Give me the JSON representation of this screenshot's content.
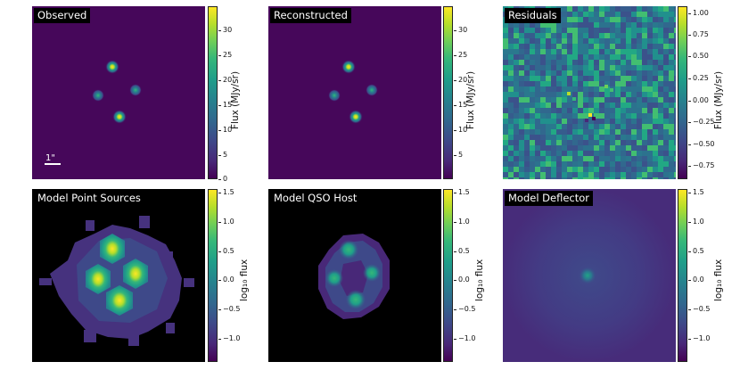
{
  "figure": {
    "panels": [
      {
        "title": "Observed",
        "colorbar": {
          "label": "Flux (MJy/sr)",
          "ticks": [
            "30",
            "25",
            "20",
            "15",
            "10",
            "5",
            "0"
          ]
        },
        "scale_bar": "1\""
      },
      {
        "title": "Reconstructed",
        "colorbar": {
          "label": "Flux (MJy/sr)",
          "ticks": [
            "30",
            "25",
            "20",
            "15",
            "10",
            "5"
          ]
        }
      },
      {
        "title": "Residuals",
        "colorbar": {
          "label": "Flux (MJy/sr)",
          "ticks": [
            "1.00",
            "0.75",
            "0.50",
            "0.25",
            "0.00",
            "−0.25",
            "−0.50",
            "−0.75"
          ]
        }
      },
      {
        "title": "Model Point Sources",
        "colorbar": {
          "label": "log₁₀ flux",
          "ticks": [
            "1.5",
            "1.0",
            "0.5",
            "0.0",
            "−0.5",
            "−1.0"
          ]
        }
      },
      {
        "title": "Model QSO Host",
        "colorbar": {
          "label": "log₁₀ flux",
          "ticks": [
            "1.5",
            "1.0",
            "0.5",
            "0.0",
            "−0.5",
            "−1.0"
          ]
        }
      },
      {
        "title": "Model Deflector",
        "colorbar": {
          "label": "log₁₀ flux",
          "ticks": [
            "1.5",
            "1.0",
            "0.5",
            "0.0",
            "−0.5",
            "−1.0"
          ]
        }
      }
    ]
  },
  "chart_data": {
    "type": "heatmap",
    "colormap": "viridis",
    "panels": [
      {
        "title": "Observed",
        "vmin": 0,
        "vmax": 34,
        "colorbar_label": "Flux (MJy/sr)"
      },
      {
        "title": "Reconstructed",
        "vmin": 0,
        "vmax": 34,
        "colorbar_label": "Flux (MJy/sr)"
      },
      {
        "title": "Residuals",
        "vmin": -0.9,
        "vmax": 1.05,
        "colorbar_label": "Flux (MJy/sr)"
      },
      {
        "title": "Model Point Sources",
        "vmin": -1.4,
        "vmax": 1.6,
        "colorbar_label": "log10 flux"
      },
      {
        "title": "Model QSO Host",
        "vmin": -1.4,
        "vmax": 1.6,
        "colorbar_label": "log10 flux"
      },
      {
        "title": "Model Deflector",
        "vmin": -1.4,
        "vmax": 1.6,
        "colorbar_label": "log10 flux"
      }
    ],
    "point_sources": [
      "top",
      "left",
      "right",
      "bottom"
    ]
  }
}
